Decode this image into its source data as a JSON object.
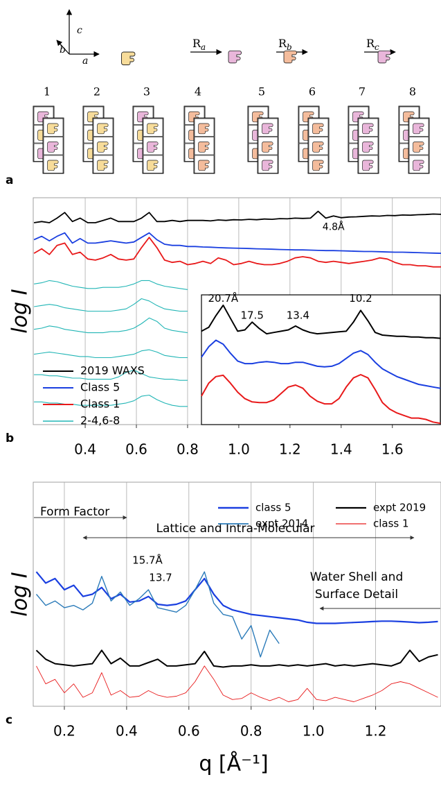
{
  "panel_a": {
    "label": "a",
    "axis_labels": [
      "c",
      "b",
      "a"
    ],
    "rotations": [
      {
        "symbol": "R",
        "subscript": "a"
      },
      {
        "symbol": "R",
        "subscript": "b"
      },
      {
        "symbol": "R",
        "subscript": "c"
      }
    ],
    "stack_numbers": [
      "1",
      "2",
      "3",
      "4",
      "5",
      "6",
      "7",
      "8"
    ]
  },
  "chart_data": [
    {
      "type": "line",
      "panel_label": "b",
      "ylabel": "log I",
      "xlim": [
        0.197,
        1.79
      ],
      "ylim": [
        0,
        100
      ],
      "xticks": [
        0.4,
        0.6,
        0.8,
        {
          "value": 1,
          "label": "1.0"
        },
        1.2,
        1.4,
        1.6
      ],
      "grid": "x",
      "legend": "lower left",
      "annotations": [
        "4.8Å"
      ],
      "x": [
        0.2,
        0.23,
        0.26,
        0.29,
        0.32,
        0.35,
        0.38,
        0.41,
        0.44,
        0.47,
        0.5,
        0.53,
        0.56,
        0.59,
        0.62,
        0.65,
        0.68,
        0.71,
        0.74,
        0.77,
        0.8,
        0.83,
        0.86,
        0.89,
        0.92,
        0.95,
        0.98,
        1.01,
        1.04,
        1.07,
        1.1,
        1.13,
        1.16,
        1.19,
        1.22,
        1.25,
        1.28,
        1.31,
        1.34,
        1.37,
        1.4,
        1.43,
        1.46,
        1.49,
        1.52,
        1.55,
        1.58,
        1.61,
        1.64,
        1.67,
        1.7,
        1.73,
        1.76,
        1.79
      ],
      "series": [
        {
          "name": "2019 WAXS",
          "color": "#000000",
          "values": [
            89,
            89.5,
            89,
            91,
            93.5,
            89.5,
            91,
            89,
            89,
            90,
            91,
            89.5,
            89.5,
            89.5,
            91,
            93.5,
            89.5,
            89.5,
            90,
            89.5,
            90,
            90,
            90,
            89.8,
            90.2,
            90,
            90.3,
            90.2,
            90.5,
            90.3,
            90.6,
            90.5,
            90.8,
            90.7,
            91,
            90.9,
            91,
            94,
            91,
            92,
            91.2,
            91.5,
            91.6,
            91.8,
            92,
            91.9,
            92.2,
            92.1,
            92.4,
            92.3,
            92.5,
            92.6,
            92.8,
            92.7
          ]
        },
        {
          "name": "Class 5",
          "color": "#1a3fe0",
          "values": [
            81.5,
            83,
            81,
            83,
            84.5,
            80,
            82,
            80,
            80,
            80.5,
            81,
            80.5,
            80,
            80.5,
            82.5,
            84.5,
            81.5,
            79.5,
            79,
            79,
            78.5,
            78.5,
            78.3,
            78.2,
            78,
            77.9,
            77.8,
            77.7,
            77.6,
            77.5,
            77.4,
            77.3,
            77.2,
            77.1,
            77,
            77,
            76.9,
            76.8,
            76.7,
            76.7,
            76.6,
            76.5,
            76.4,
            76.3,
            76.3,
            76.2,
            76.1,
            76,
            76,
            75.9,
            75.8,
            75.7,
            75.6,
            75.5
          ]
        },
        {
          "name": "Class 1",
          "color": "#e8191a",
          "values": [
            75.5,
            77.5,
            75,
            79,
            80,
            75,
            76,
            73,
            72.5,
            73.5,
            75,
            73,
            72.5,
            73,
            78,
            82.5,
            78,
            72.5,
            71.5,
            72,
            70.5,
            71,
            72,
            71,
            73.5,
            72.5,
            70.5,
            71,
            72,
            71,
            70.5,
            70.5,
            71,
            72,
            73.5,
            74,
            73.5,
            72,
            71.5,
            72,
            71.5,
            71,
            71.5,
            72,
            72.5,
            73.5,
            73,
            71.5,
            70.5,
            70.5,
            70,
            70,
            69.5,
            69.5
          ]
        },
        {
          "name": "2-4,6-8",
          "color": "#20b5b5",
          "x": [
            0.2,
            0.23,
            0.26,
            0.29,
            0.32,
            0.35,
            0.38,
            0.41,
            0.44,
            0.47,
            0.5,
            0.53,
            0.56,
            0.59,
            0.62,
            0.65,
            0.68,
            0.71,
            0.74,
            0.77,
            0.8
          ],
          "values": [
            [
              62,
              62.5,
              63.5,
              63,
              62,
              61,
              60.5,
              60,
              60,
              60.5,
              60.5,
              60.5,
              61,
              62,
              63.5,
              63.5,
              62,
              61,
              60.5,
              60,
              59.5
            ],
            [
              52,
              52.5,
              53,
              52.5,
              51.5,
              51,
              50.5,
              50,
              50,
              50,
              50,
              50.5,
              51,
              53,
              55.5,
              54.5,
              52.5,
              51,
              50.5,
              50,
              50
            ],
            [
              42,
              42.5,
              43.5,
              43,
              42,
              41.5,
              41,
              40.5,
              40.5,
              40.5,
              41,
              41,
              41.5,
              42.5,
              44.5,
              47,
              45.5,
              42.5,
              41.5,
              41,
              40.5
            ],
            [
              31,
              31.5,
              32,
              31.5,
              31,
              30.5,
              30,
              30,
              29.5,
              29.5,
              29.5,
              30,
              30.5,
              31,
              32.5,
              33,
              32,
              30.5,
              30,
              29.5,
              29.5
            ],
            [
              22,
              22,
              21.5,
              21.5,
              21,
              20.5,
              20.5,
              20,
              20,
              20,
              20,
              21,
              23,
              24,
              22.5,
              21,
              20.5,
              20,
              20,
              19.5,
              19.5
            ],
            [
              10,
              10,
              9.5,
              9.5,
              9,
              9,
              8.5,
              8.5,
              8.5,
              8.5,
              8.5,
              9,
              9.5,
              10.5,
              12.5,
              13,
              11,
              9.5,
              8.5,
              8,
              8
            ]
          ]
        }
      ]
    },
    {
      "type": "line",
      "xlim": [
        0,
        99
      ],
      "ylim": [
        0,
        100
      ],
      "annotations": [
        "20.7Å",
        "17.5",
        "13.4",
        "10.2"
      ],
      "x": [
        0,
        3,
        6,
        9,
        12,
        15,
        18,
        21,
        24,
        27,
        30,
        33,
        36,
        39,
        42,
        45,
        48,
        51,
        54,
        57,
        60,
        63,
        66,
        69,
        72,
        75,
        78,
        81,
        84,
        87,
        90,
        93,
        96,
        99
      ],
      "series": [
        {
          "color": "#000000",
          "values": [
            72,
            75,
            84,
            92,
            82,
            72,
            73,
            79,
            74,
            70,
            71,
            72,
            73,
            76,
            73,
            71,
            70,
            70.5,
            71,
            71.5,
            72,
            79,
            88,
            80,
            71,
            69,
            68.5,
            68,
            68,
            67.5,
            67.5,
            67,
            67,
            66.5
          ]
        },
        {
          "color": "#1a3fe0",
          "values": [
            52,
            60,
            65,
            62,
            55,
            49,
            47,
            47,
            48,
            48.5,
            48,
            47,
            47,
            48,
            48,
            46.5,
            45,
            44.5,
            45,
            47,
            51,
            55,
            57,
            54,
            48,
            43,
            40,
            37,
            35,
            33,
            31,
            30,
            29,
            28
          ]
        },
        {
          "color": "#e8191a",
          "values": [
            22,
            32,
            37,
            38,
            32,
            25,
            20,
            17.5,
            17,
            17,
            19,
            24,
            29,
            30.5,
            28,
            22,
            18,
            16,
            16,
            20,
            29,
            36,
            38.5,
            36,
            27,
            17,
            12,
            9,
            7,
            5,
            5,
            4,
            2,
            1
          ]
        }
      ]
    },
    {
      "type": "line",
      "panel_label": "c",
      "ylabel": "log I",
      "xlabel": "q [Å⁻¹]",
      "xlim": [
        0.1,
        1.41
      ],
      "ylim": [
        0,
        100
      ],
      "xticks": [
        0.2,
        0.4,
        0.6,
        0.8,
        {
          "value": 1,
          "label": "1.0"
        },
        1.2
      ],
      "grid": "x",
      "legend": "upper right",
      "annotations": [
        "Form Factor",
        "Lattice and Intra-Molecular",
        "Water Shell and",
        "Surface Detail",
        "15.7Å",
        "13.7"
      ],
      "x": [
        0.11,
        0.14,
        0.17,
        0.2,
        0.23,
        0.26,
        0.29,
        0.32,
        0.35,
        0.38,
        0.41,
        0.44,
        0.47,
        0.5,
        0.53,
        0.56,
        0.59,
        0.62,
        0.65,
        0.68,
        0.71,
        0.74,
        0.77,
        0.8,
        0.83,
        0.86,
        0.89,
        0.92,
        0.95,
        0.98,
        1.01,
        1.04,
        1.07,
        1.1,
        1.13,
        1.16,
        1.19,
        1.22,
        1.25,
        1.28,
        1.31,
        1.34,
        1.37,
        1.4
      ],
      "series": [
        {
          "name": "class 5",
          "color": "#1a3fe0",
          "values": [
            60,
            55,
            57,
            52,
            54,
            49,
            50,
            53,
            48,
            50,
            46.5,
            47,
            49,
            45.5,
            45,
            45.5,
            47,
            52,
            57,
            50,
            45,
            43,
            42,
            41,
            40.5,
            40,
            39.5,
            39,
            38.5,
            37.5,
            37,
            37,
            37,
            37.2,
            37.4,
            37.6,
            37.8,
            38,
            38,
            37.8,
            37.6,
            37.3,
            37.5,
            37.8
          ]
        },
        {
          "name": "expt 2014",
          "color": "#2b7bb9",
          "values": [
            50,
            45,
            47,
            44,
            45,
            43,
            46,
            58,
            47,
            51,
            45,
            48,
            52,
            44,
            43,
            42,
            45,
            52,
            60,
            46,
            41,
            40,
            30,
            36,
            22,
            34,
            28,
            null,
            null,
            null,
            null,
            null,
            null,
            null,
            null,
            null,
            null,
            null,
            null,
            null,
            null,
            null,
            null,
            null
          ]
        },
        {
          "name": "expt 2019",
          "color": "#000000",
          "values": [
            25,
            21,
            19,
            18.5,
            18,
            18.5,
            19,
            25,
            19,
            21.5,
            18,
            18,
            19.5,
            21,
            18,
            18,
            18.5,
            19,
            24.5,
            18,
            17.5,
            18,
            18,
            18.5,
            18,
            18,
            18.5,
            18,
            18.5,
            18,
            18.5,
            19,
            18,
            18.5,
            18,
            18.5,
            19,
            18.5,
            18,
            19.5,
            25,
            20,
            22,
            23
          ]
        },
        {
          "name": "class 1",
          "color": "#e8191a",
          "values": [
            18,
            10,
            12,
            6,
            10,
            4,
            6,
            15,
            5,
            7,
            4,
            4.5,
            7,
            5,
            4,
            4.5,
            6,
            11,
            18,
            12,
            5,
            3,
            3.5,
            6,
            4,
            2.5,
            4,
            2,
            3,
            8,
            3,
            2.5,
            4,
            3,
            2,
            3.5,
            5,
            7,
            10,
            11,
            10,
            8,
            6,
            4
          ]
        }
      ]
    }
  ]
}
